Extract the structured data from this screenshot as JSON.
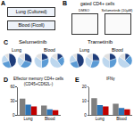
{
  "figure": {
    "A": {
      "panel": "A",
      "boxes": [
        "Lung (Cultured)",
        "Blood (Ficoll)"
      ]
    },
    "B": {
      "panel": "B",
      "title": "gated CD4+ cells",
      "frames": [
        "DMSO",
        "Selumetinib (10µM)"
      ]
    }
  },
  "chart_data": [
    {
      "type": "pie",
      "panel": "C",
      "title": "Selumetinib",
      "colors": [
        "#1f3d7a",
        "#5b9bd5",
        "#bdd7ee",
        "#e0e0e0"
      ],
      "panels": [
        {
          "title": "Lung",
          "series": [
            {
              "values": [
                45,
                25,
                20,
                10
              ]
            },
            {
              "values": [
                30,
                30,
                25,
                15
              ]
            }
          ]
        },
        {
          "title": "Blood",
          "series": [
            {
              "values": [
                20,
                30,
                35,
                15
              ]
            },
            {
              "values": [
                15,
                25,
                45,
                15
              ]
            }
          ]
        }
      ]
    },
    {
      "type": "pie",
      "title": "Trametinib",
      "colors": [
        "#1f3d7a",
        "#5b9bd5",
        "#bdd7ee",
        "#e0e0e0"
      ],
      "panels": [
        {
          "title": "Lung",
          "series": [
            {
              "values": [
                45,
                25,
                20,
                10
              ]
            },
            {
              "values": [
                25,
                30,
                30,
                15
              ]
            }
          ]
        },
        {
          "title": "Blood",
          "series": [
            {
              "values": [
                20,
                30,
                35,
                15
              ]
            },
            {
              "values": [
                12,
                25,
                48,
                15
              ]
            }
          ]
        }
      ]
    },
    {
      "type": "bar",
      "panel": "D",
      "title": "Effector memory CD4+ cells",
      "subtitle": "(CD45+CD62L-)",
      "categories": [
        "Lung",
        "Blood"
      ],
      "series": [
        {
          "color": "#7f7f7f",
          "values": [
            35,
            20
          ]
        },
        {
          "color": "#2e75b6",
          "values": [
            22,
            12
          ]
        },
        {
          "color": "#c00000",
          "values": [
            18,
            10
          ]
        }
      ],
      "ylim": [
        0,
        60
      ],
      "yticks": [
        0,
        30,
        60
      ],
      "tick_labels": true
    },
    {
      "type": "bar",
      "panel": "E",
      "title": "IFNγ",
      "categories": [
        "Lung",
        "Blood"
      ],
      "series": [
        {
          "color": "#7f7f7f",
          "values": [
            12,
            8
          ]
        },
        {
          "color": "#2e75b6",
          "values": [
            7,
            5
          ]
        },
        {
          "color": "#c00000",
          "values": [
            6,
            4
          ]
        }
      ],
      "ylim": [
        0,
        20
      ],
      "yticks": [
        0,
        10,
        20
      ],
      "tick_labels": true
    }
  ]
}
